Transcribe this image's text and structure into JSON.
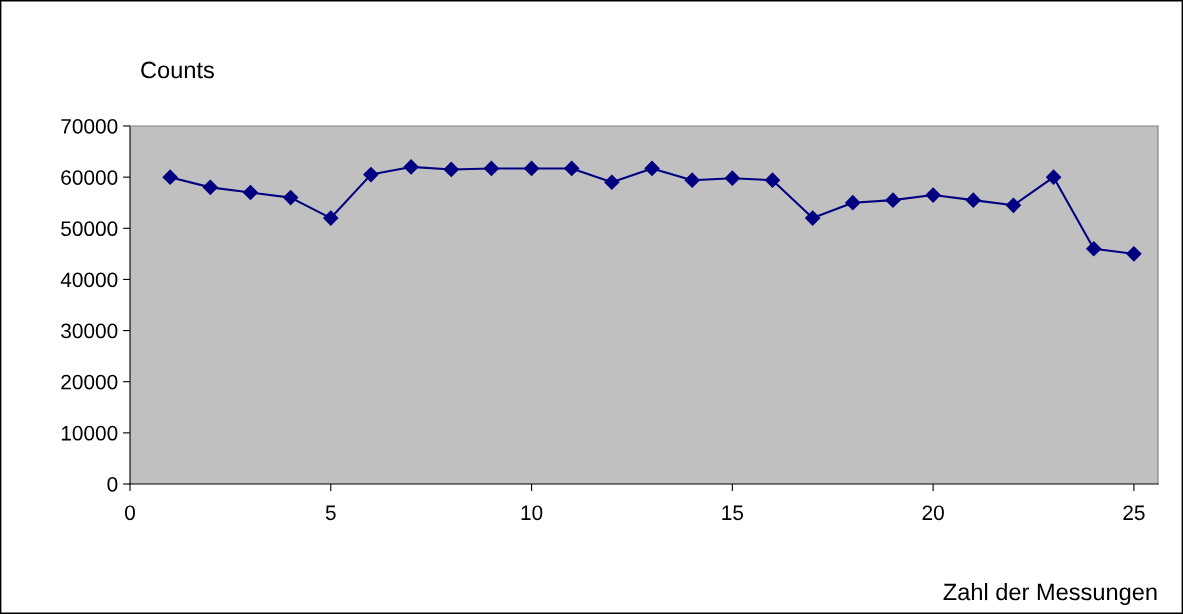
{
  "chart_data": {
    "type": "line",
    "ylabel": "Counts",
    "xlabel": "Zahl der Messungen",
    "x": [
      1,
      2,
      3,
      4,
      5,
      6,
      7,
      8,
      9,
      10,
      11,
      12,
      13,
      14,
      15,
      16,
      17,
      18,
      19,
      20,
      21,
      22,
      23,
      24,
      25
    ],
    "series": [
      {
        "color": "#000080",
        "values": [
          60000,
          58000,
          57000,
          56000,
          52000,
          60500,
          62000,
          61500,
          61700,
          61700,
          61700,
          59000,
          61700,
          59400,
          59800,
          59400,
          52000,
          55000,
          55500,
          56500,
          55500,
          54500,
          60000,
          46000,
          45000
        ]
      }
    ],
    "xlim": [
      0,
      25.6
    ],
    "xticks": [
      0,
      5,
      10,
      15,
      20,
      25
    ],
    "ylim": [
      0,
      70000
    ],
    "yticks": [
      0,
      10000,
      20000,
      30000,
      40000,
      50000,
      60000,
      70000
    ],
    "marker": "diamond",
    "line_style": "solid",
    "grid": false,
    "legend": false
  }
}
